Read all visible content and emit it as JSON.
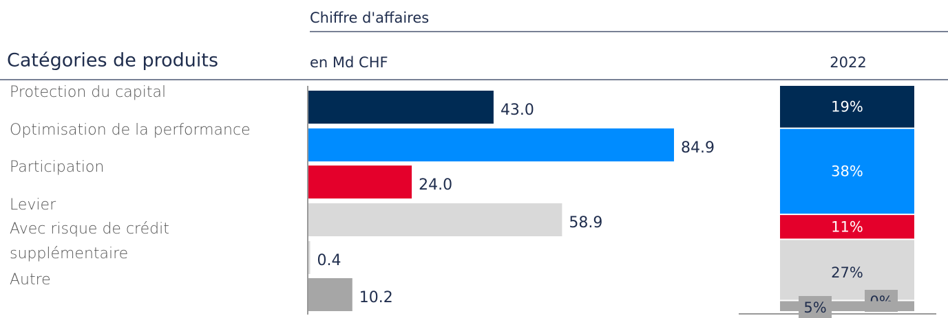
{
  "chart_data": [
    {
      "type": "hbar",
      "title": "Chiffre d'affaires",
      "subtitle": "en Md CHF",
      "category_label": "Catégories de produits",
      "categories": [
        "Protection du capital",
        "Optimisation de la performance",
        "Participation",
        "Levier",
        "Avec risque de crédit supplémentaire",
        "Autre"
      ],
      "values": [
        43.0,
        84.9,
        24.0,
        58.9,
        0.4,
        10.2
      ],
      "value_labels": [
        "43.0",
        "84.9",
        "24.0",
        "58.9",
        "0.4",
        "10.2"
      ],
      "colors": [
        "#002b54",
        "#008cff",
        "#e4002b",
        "#d9d9d9",
        "#d9d9d9",
        "#a6a6a6"
      ]
    },
    {
      "type": "stacked-column",
      "categories": [
        "2022"
      ],
      "series": [
        {
          "color": "#002b54",
          "values": [
            19
          ],
          "value_labels": [
            "19%"
          ]
        },
        {
          "color": "#008cff",
          "values": [
            38
          ],
          "value_labels": [
            "38%"
          ]
        },
        {
          "color": "#e4002b",
          "values": [
            11
          ],
          "value_labels": [
            "11%"
          ]
        },
        {
          "color": "#d9d9d9",
          "values": [
            27
          ],
          "value_labels": [
            "27%"
          ]
        },
        {
          "color": "#d9d9d9",
          "values": [
            0
          ],
          "value_labels": [
            "0%"
          ]
        },
        {
          "color": "#a6a6a6",
          "values": [
            5
          ],
          "value_labels": [
            "5%"
          ]
        }
      ]
    }
  ]
}
